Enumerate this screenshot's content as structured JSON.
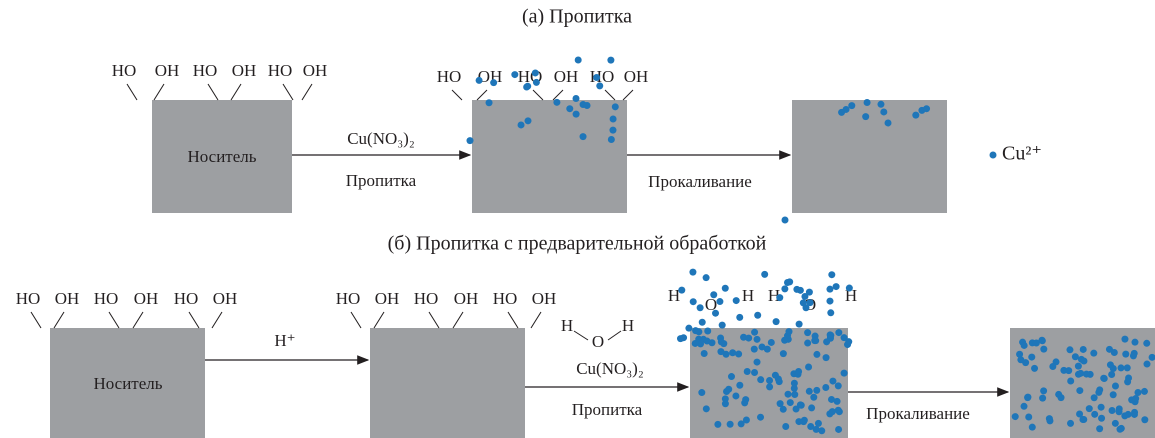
{
  "panel_a": {
    "title": "(а) Пропитка",
    "support_1": {
      "label": "Носитель",
      "hydroxyls": [
        "HO",
        "OH",
        "HO",
        "OH",
        "HO",
        "OH"
      ]
    },
    "arrow_1": {
      "above": "Cu(NO₃)₂",
      "below": "Пропитка"
    },
    "support_2": {
      "hydroxyls": [
        "HO",
        "OH",
        "HO",
        "OH",
        "HO",
        "OH"
      ]
    },
    "arrow_2": {
      "below": "Прокаливание"
    },
    "legend": "Cu²⁺"
  },
  "panel_b": {
    "title": "(б) Пропитка с предварительной обработкой",
    "support_1": {
      "label": "Носитель",
      "hydroxyls": [
        "HO",
        "OH",
        "HO",
        "OH",
        "HO",
        "OH"
      ]
    },
    "arrow_1": {
      "above": "H⁺"
    },
    "support_2": {
      "hydroxyls": [
        "HO",
        "OH",
        "HO",
        "OH",
        "HO",
        "OH"
      ]
    },
    "water": [
      "H",
      "O",
      "H"
    ],
    "arrow_2": {
      "above": "Cu(NO₃)₂",
      "below": "Пропитка"
    },
    "support_3": {
      "water_labels": [
        "H",
        "O",
        "H",
        "H",
        "O",
        "H"
      ]
    },
    "arrow_3": {
      "below": "Прокаливание"
    }
  }
}
